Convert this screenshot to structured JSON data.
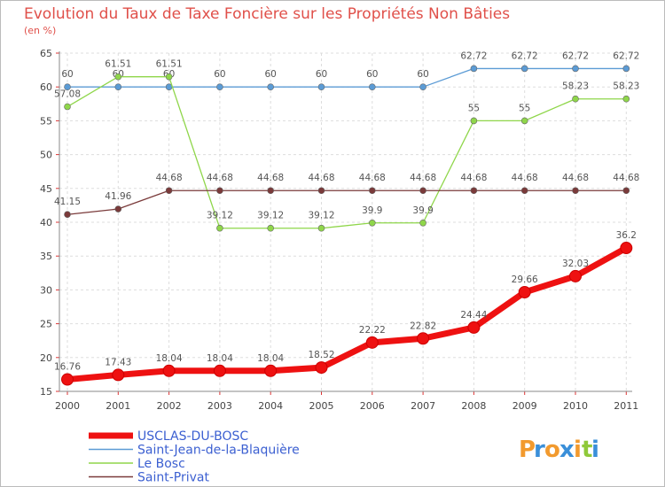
{
  "chart_data": {
    "type": "line",
    "title": "Evolution du Taux de Taxe Foncière sur les Propriétés Non Bâties",
    "subtitle": "(en %)",
    "xlabel": "",
    "ylabel": "",
    "ylim": [
      15,
      65
    ],
    "yticks": [
      15,
      20,
      25,
      30,
      35,
      40,
      45,
      50,
      55,
      60,
      65
    ],
    "grid": true,
    "legend_position": "bottom-left",
    "categories": [
      "2000",
      "2001",
      "2002",
      "2003",
      "2004",
      "2005",
      "2006",
      "2007",
      "2008",
      "2009",
      "2010",
      "2011"
    ],
    "series": [
      {
        "name": "Saint-Jean-de-la-Blaquière",
        "color": "#5b9bd5",
        "values": [
          60,
          60,
          60,
          60,
          60,
          60,
          60,
          60,
          62.72,
          62.72,
          62.72,
          62.72
        ],
        "labels": [
          "60",
          "60",
          "60",
          "60",
          "60",
          "60",
          "60",
          "60",
          "62.72",
          "62.72",
          "62.72",
          "62.72"
        ]
      },
      {
        "name": "Le Bosc",
        "color": "#8fd64a",
        "values": [
          57.08,
          61.51,
          61.51,
          39.12,
          39.12,
          39.12,
          39.9,
          39.9,
          55,
          55,
          58.23,
          58.23
        ],
        "labels": [
          "57.08",
          "61.51",
          "61.51",
          "39.12",
          "39.12",
          "39.12",
          "39.9",
          "39.9",
          "55",
          "55",
          "58.23",
          "58.23"
        ]
      },
      {
        "name": "Saint-Privat",
        "color": "#7a3a3a",
        "values": [
          41.15,
          41.96,
          44.68,
          44.68,
          44.68,
          44.68,
          44.68,
          44.68,
          44.68,
          44.68,
          44.68,
          44.68
        ],
        "labels": [
          "41.15",
          "41.96",
          "44.68",
          "44.68",
          "44.68",
          "44.68",
          "44.68",
          "44.68",
          "44.68",
          "44.68",
          "44.68",
          "44.68"
        ]
      },
      {
        "name": "USCLAS-DU-BOSC",
        "color": "#ee1111",
        "values": [
          16.76,
          17.43,
          18.04,
          18.04,
          18.04,
          18.52,
          22.22,
          22.82,
          24.44,
          29.66,
          32.03,
          36.2
        ],
        "labels": [
          "16.76",
          "17.43",
          "18.04",
          "18.04",
          "18.04",
          "18.52",
          "22.22",
          "22.82",
          "24.44",
          "29.66",
          "32.03",
          "36.2"
        ]
      }
    ],
    "legend_order": [
      "USCLAS-DU-BOSC",
      "Saint-Jean-de-la-Blaquière",
      "Le Bosc",
      "Saint-Privat"
    ]
  },
  "branding": {
    "logo_letters": [
      "P",
      "r",
      "o",
      "x",
      "i",
      "t",
      "i"
    ],
    "logo_colors": [
      "#f29a2e",
      "#3a8fd9",
      "#f29a2e",
      "#3a8fd9",
      "#f29a2e",
      "#8fc93a",
      "#3a8fd9"
    ]
  }
}
